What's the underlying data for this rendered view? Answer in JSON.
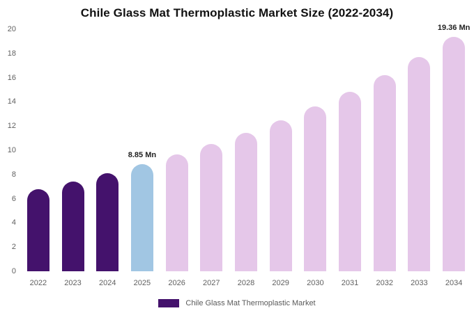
{
  "chart_data": {
    "type": "bar",
    "title": "Chile Glass Mat Thermoplastic Market Size (2022-2034)",
    "unit": "Mn",
    "categories": [
      "2022",
      "2023",
      "2024",
      "2025",
      "2026",
      "2027",
      "2028",
      "2029",
      "2030",
      "2031",
      "2032",
      "2033",
      "2034"
    ],
    "values": [
      6.8,
      7.4,
      8.1,
      8.85,
      9.65,
      10.5,
      11.45,
      12.5,
      13.6,
      14.85,
      16.2,
      17.7,
      19.36
    ],
    "bar_colors": [
      "#44126C",
      "#44126C",
      "#44126C",
      "#A1C6E3",
      "#E5C7E9",
      "#E5C7E9",
      "#E5C7E9",
      "#E5C7E9",
      "#E5C7E9",
      "#E5C7E9",
      "#E5C7E9",
      "#E5C7E9",
      "#E5C7E9"
    ],
    "ylim": [
      0,
      20
    ],
    "y_ticks": [
      0,
      2,
      4,
      6,
      8,
      10,
      12,
      14,
      16,
      18,
      20
    ],
    "grid": false,
    "annotations": [
      {
        "category": "2025",
        "text": "8.85 Mn"
      },
      {
        "category": "2034",
        "text": "19.36 Mn"
      }
    ],
    "legend": {
      "label": "Chile Glass Mat Thermoplastic Market",
      "swatch_color": "#44126C",
      "position": "bottom"
    }
  },
  "colors": {
    "background": "#ffffff",
    "title_text": "#111111",
    "axis_text": "#606060",
    "annotation_text": "#1f1f1f"
  }
}
